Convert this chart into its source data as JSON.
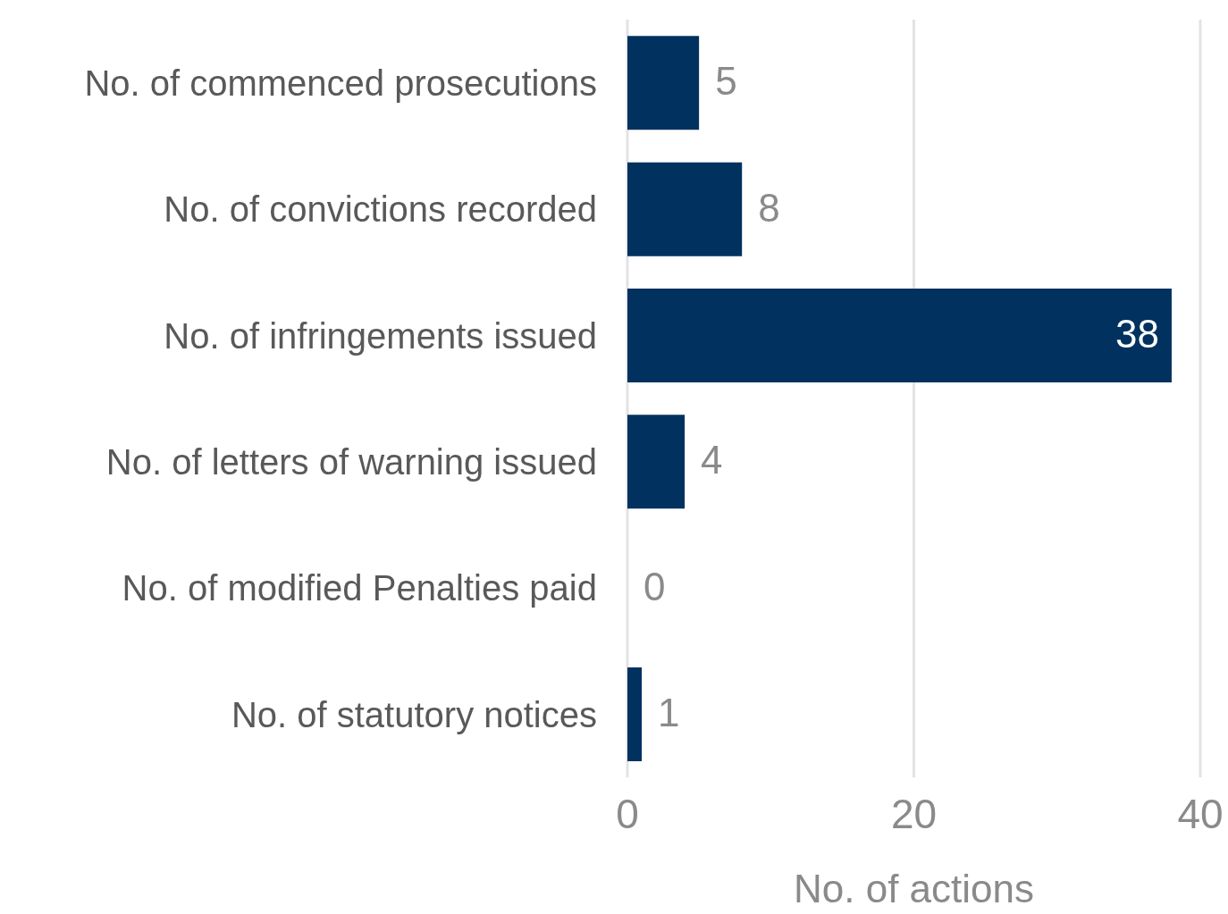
{
  "chart_data": {
    "type": "bar",
    "orientation": "horizontal",
    "xlabel": "No. of actions",
    "categories": [
      "No. of commenced prosecutions",
      "No. of convictions recorded",
      "No. of infringements issued",
      "No. of letters of warning issued",
      "No. of modified Penalties paid",
      "No. of statutory notices"
    ],
    "values": [
      5,
      8,
      38,
      4,
      0,
      1
    ],
    "color": "#00315f",
    "xlim": [
      0,
      40
    ],
    "xticks": [
      0,
      20,
      40
    ],
    "grid": "x",
    "data_labels": true
  }
}
